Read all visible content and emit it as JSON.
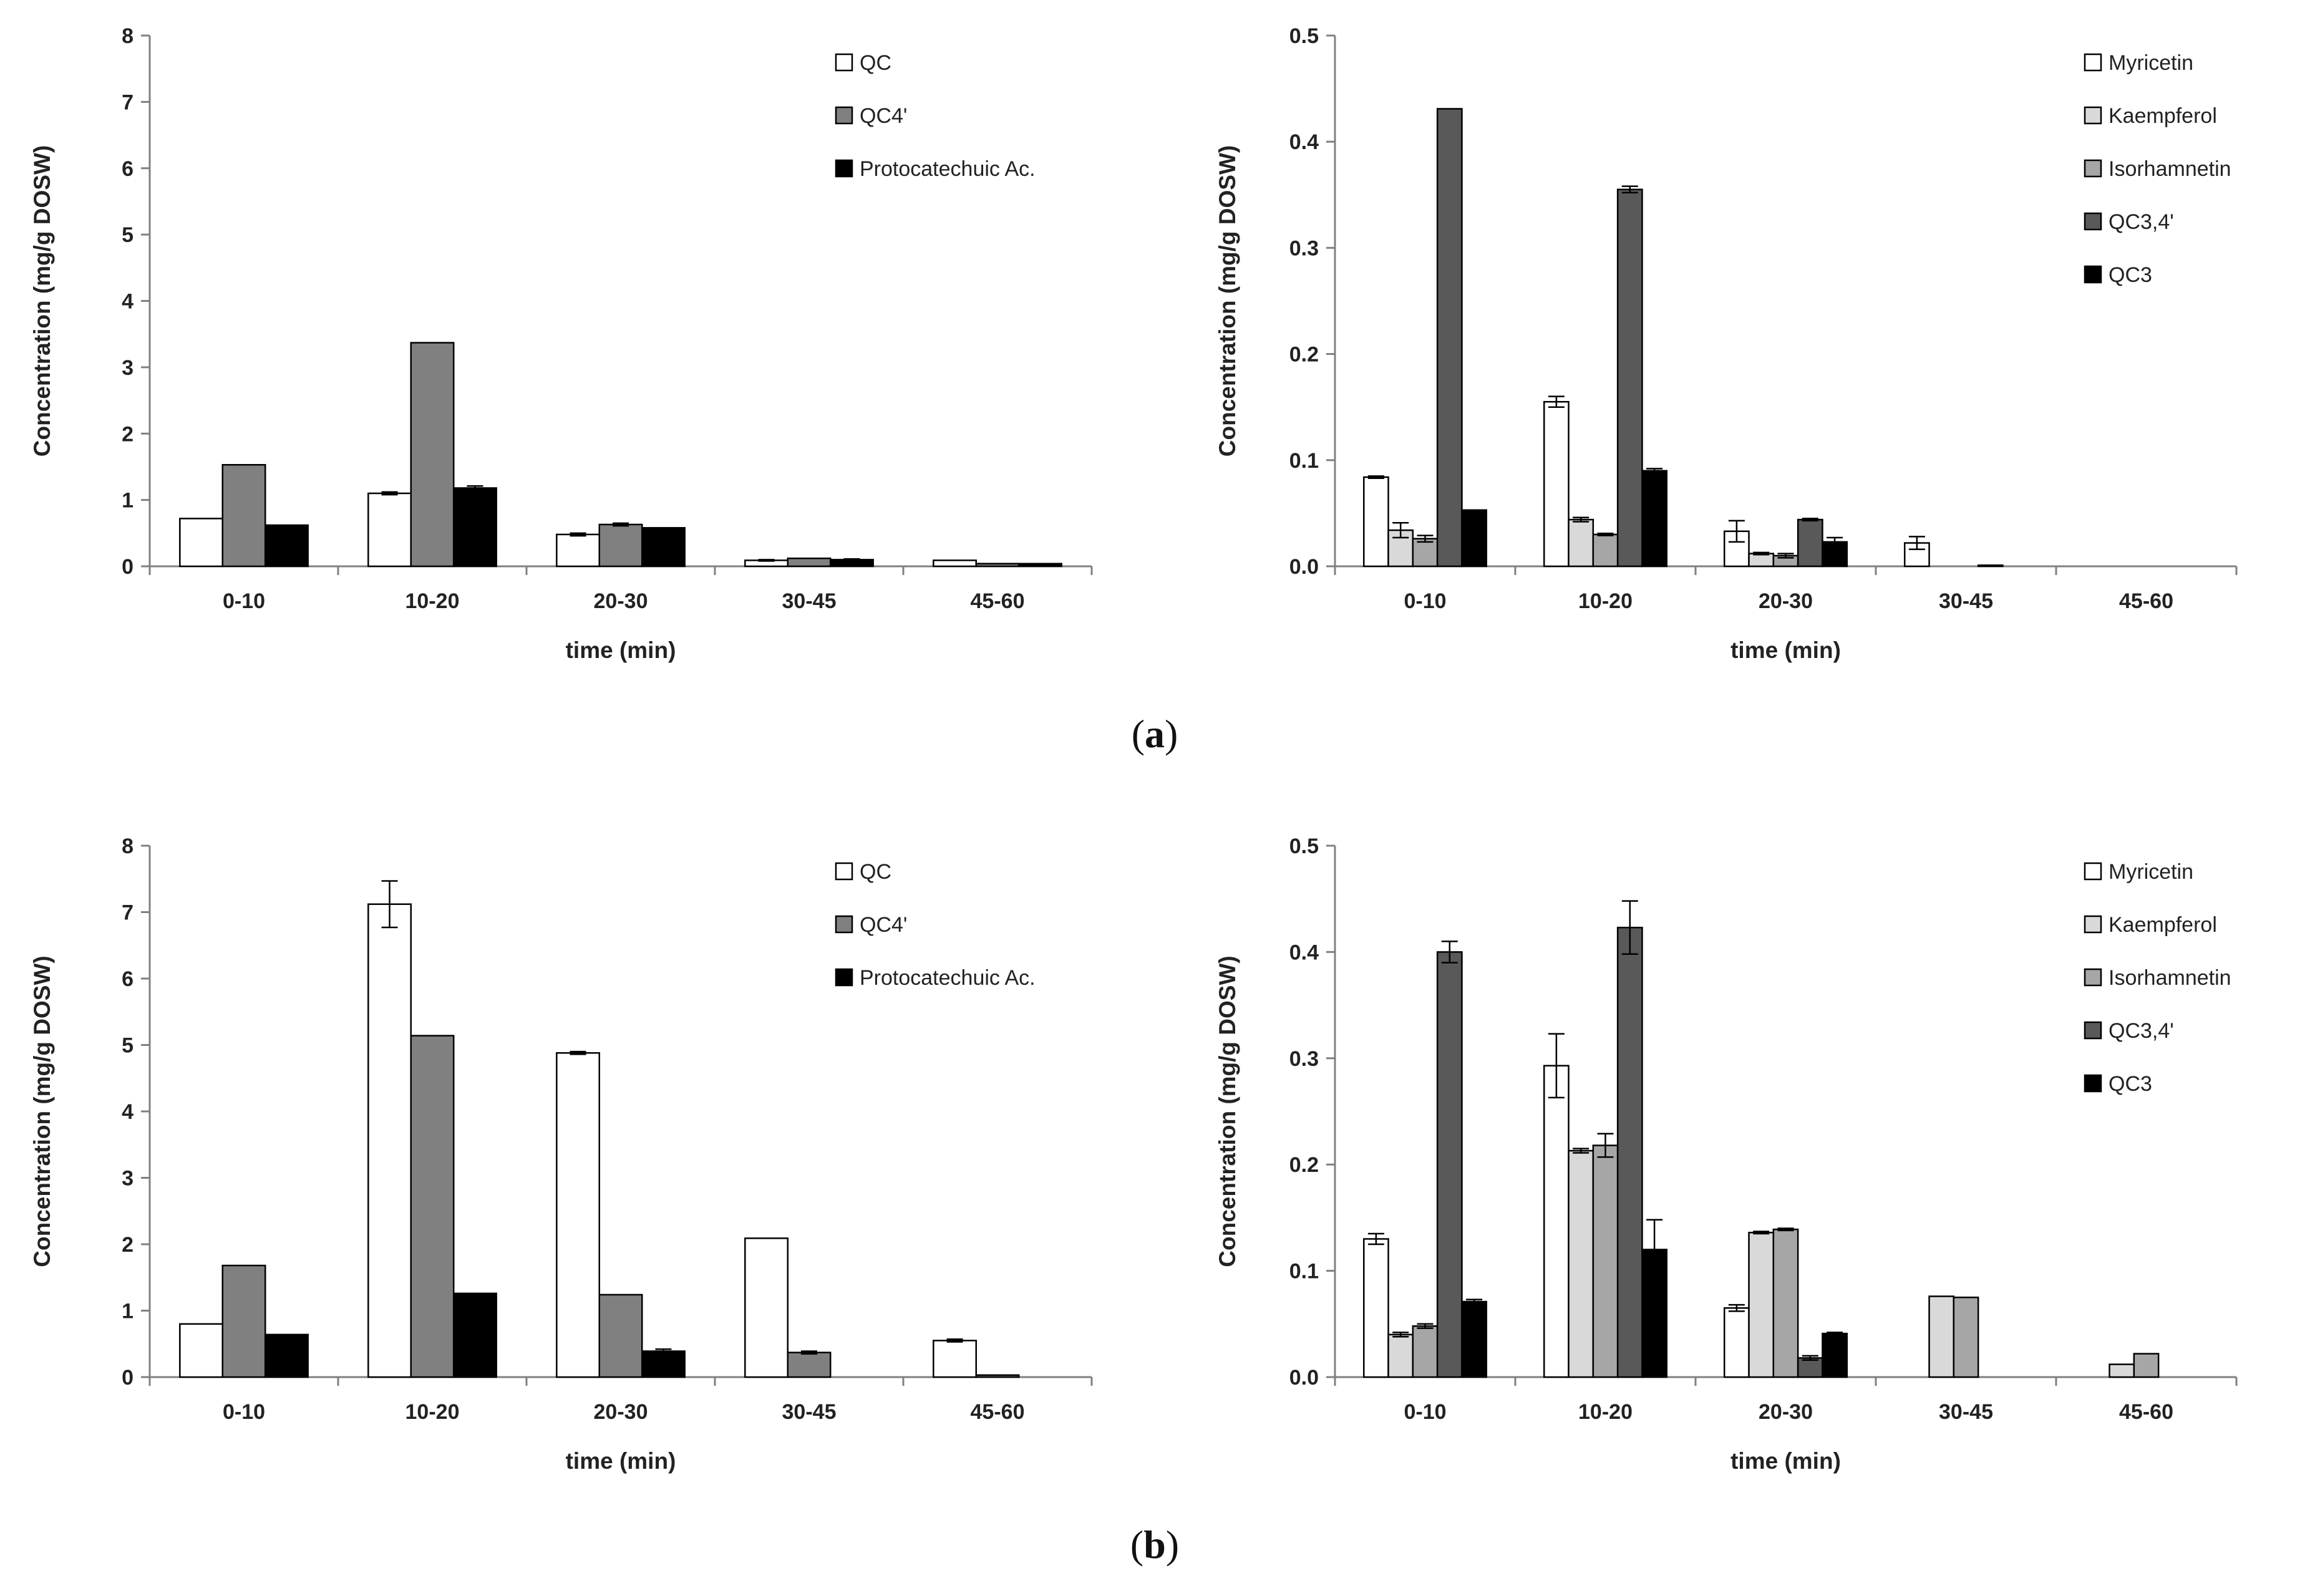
{
  "captions": {
    "a": "a",
    "b": "b"
  },
  "colors": {
    "QC": "#ffffff",
    "QC4p": "#808080",
    "PA": "#000000",
    "Myricetin": "#ffffff",
    "Kaempferol": "#d9d9d9",
    "Isorhamnetin": "#a6a6a6",
    "QC34": "#595959",
    "QC3": "#000000",
    "axis": "#808080"
  },
  "chart_data": [
    {
      "id": "a-left",
      "type": "bar",
      "xlabel": "time (min)",
      "ylabel": "Concentration (mg/g DOSW)",
      "ylim": [
        0,
        8
      ],
      "yticks": [
        "0",
        "1",
        "2",
        "3",
        "4",
        "5",
        "6",
        "7",
        "8"
      ],
      "categories": [
        "0-10",
        "10-20",
        "20-30",
        "30-45",
        "45-60"
      ],
      "legend_position": "top-right",
      "series": [
        {
          "name": "QC",
          "color_key": "QC",
          "values": [
            0.72,
            1.1,
            0.48,
            0.09,
            0.09
          ],
          "errors": [
            0,
            0.02,
            0.02,
            0.01,
            0
          ]
        },
        {
          "name": "QC4'",
          "color_key": "QC4p",
          "values": [
            1.53,
            3.37,
            0.63,
            0.12,
            0.04
          ],
          "errors": [
            0,
            0,
            0.02,
            0,
            0
          ]
        },
        {
          "name": "Protocatechuic Ac.",
          "color_key": "PA",
          "values": [
            0.62,
            1.18,
            0.58,
            0.1,
            0.04
          ],
          "errors": [
            0,
            0.03,
            0,
            0.01,
            0
          ]
        }
      ]
    },
    {
      "id": "a-right",
      "type": "bar",
      "xlabel": "time (min)",
      "ylabel": "Concentration (mg/g DOSW)",
      "ylim": [
        0,
        0.5
      ],
      "yticks": [
        "0.0",
        "0.1",
        "0.2",
        "0.3",
        "0.4",
        "0.5"
      ],
      "categories": [
        "0-10",
        "10-20",
        "20-30",
        "30-45",
        "45-60"
      ],
      "legend_position": "top-right",
      "series": [
        {
          "name": "Myricetin",
          "color_key": "Myricetin",
          "values": [
            0.084,
            0.155,
            0.033,
            0.022,
            0
          ],
          "errors": [
            0.001,
            0.005,
            0.01,
            0.006,
            0
          ]
        },
        {
          "name": "Kaempferol",
          "color_key": "Kaempferol",
          "values": [
            0.034,
            0.044,
            0.012,
            0,
            0
          ],
          "errors": [
            0.007,
            0.002,
            0.001,
            0,
            0
          ]
        },
        {
          "name": "Isorhamnetin",
          "color_key": "Isorhamnetin",
          "values": [
            0.026,
            0.03,
            0.01,
            0,
            0
          ],
          "errors": [
            0.003,
            0.001,
            0.002,
            0,
            0
          ]
        },
        {
          "name": "QC3,4'",
          "color_key": "QC34",
          "values": [
            0.431,
            0.355,
            0.044,
            0.001,
            0
          ],
          "errors": [
            0,
            0.003,
            0.001,
            0,
            0
          ]
        },
        {
          "name": "QC3",
          "color_key": "QC3",
          "values": [
            0.053,
            0.09,
            0.023,
            0,
            0
          ],
          "errors": [
            0,
            0.002,
            0.004,
            0,
            0
          ]
        }
      ]
    },
    {
      "id": "b-left",
      "type": "bar",
      "xlabel": "time (min)",
      "ylabel": "Concentration (mg/g DOSW)",
      "ylim": [
        0,
        8
      ],
      "yticks": [
        "0",
        "1",
        "2",
        "3",
        "4",
        "5",
        "6",
        "7",
        "8"
      ],
      "categories": [
        "0-10",
        "10-20",
        "20-30",
        "30-45",
        "45-60"
      ],
      "legend_position": "top-right",
      "series": [
        {
          "name": "QC",
          "color_key": "QC",
          "values": [
            0.8,
            7.12,
            4.88,
            2.09,
            0.55
          ],
          "errors": [
            0,
            0.35,
            0.02,
            0,
            0.02
          ]
        },
        {
          "name": "QC4'",
          "color_key": "QC4p",
          "values": [
            1.68,
            5.14,
            1.24,
            0.37,
            0.03
          ],
          "errors": [
            0,
            0,
            0,
            0.02,
            0
          ]
        },
        {
          "name": "Protocatechuic Ac.",
          "color_key": "PA",
          "values": [
            0.64,
            1.26,
            0.39,
            0,
            0
          ],
          "errors": [
            0,
            0,
            0.03,
            0,
            0
          ]
        }
      ]
    },
    {
      "id": "b-right",
      "type": "bar",
      "xlabel": "time (min)",
      "ylabel": "Concentration (mg/g DOSW)",
      "ylim": [
        0,
        0.5
      ],
      "yticks": [
        "0.0",
        "0.1",
        "0.2",
        "0.3",
        "0.4",
        "0.5"
      ],
      "categories": [
        "0-10",
        "10-20",
        "20-30",
        "30-45",
        "45-60"
      ],
      "legend_position": "top-right",
      "series": [
        {
          "name": "Myricetin",
          "color_key": "Myricetin",
          "values": [
            0.13,
            0.293,
            0.065,
            0,
            0
          ],
          "errors": [
            0.005,
            0.03,
            0.003,
            0,
            0
          ]
        },
        {
          "name": "Kaempferol",
          "color_key": "Kaempferol",
          "values": [
            0.04,
            0.213,
            0.136,
            0.076,
            0.012
          ],
          "errors": [
            0.002,
            0.002,
            0.001,
            0,
            0
          ]
        },
        {
          "name": "Isorhamnetin",
          "color_key": "Isorhamnetin",
          "values": [
            0.048,
            0.218,
            0.139,
            0.075,
            0.022
          ],
          "errors": [
            0.002,
            0.011,
            0.001,
            0,
            0
          ]
        },
        {
          "name": "QC3,4'",
          "color_key": "QC34",
          "values": [
            0.4,
            0.423,
            0.018,
            0,
            0
          ],
          "errors": [
            0.01,
            0.025,
            0.002,
            0,
            0
          ]
        },
        {
          "name": "QC3",
          "color_key": "QC3",
          "values": [
            0.071,
            0.12,
            0.041,
            0,
            0
          ],
          "errors": [
            0.002,
            0.028,
            0.001,
            0,
            0
          ]
        }
      ]
    }
  ]
}
